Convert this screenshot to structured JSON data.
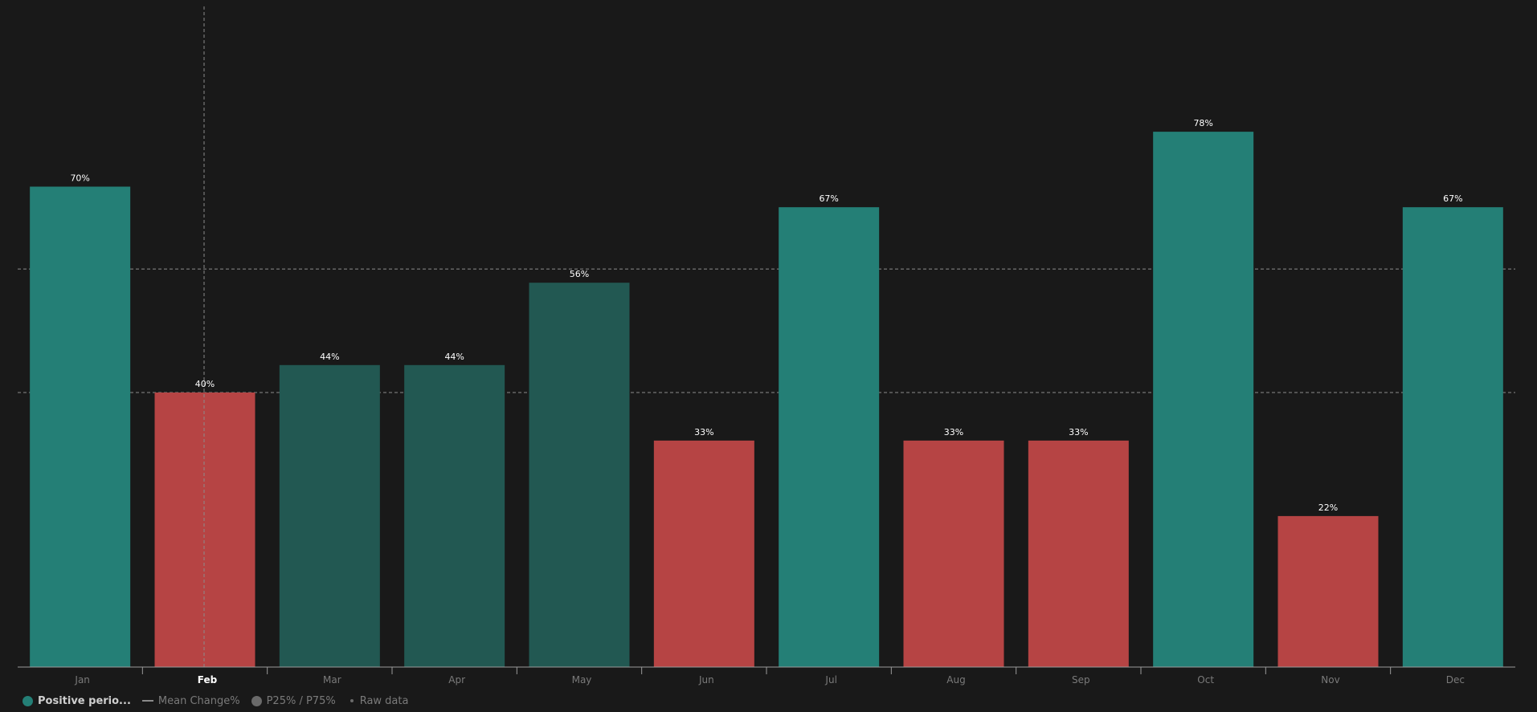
{
  "chart_data": {
    "type": "bar",
    "categories": [
      "Jan",
      "Feb",
      "Mar",
      "Apr",
      "May",
      "Jun",
      "Jul",
      "Aug",
      "Sep",
      "Oct",
      "Nov",
      "Dec"
    ],
    "values": [
      70,
      40,
      44,
      44,
      56,
      33,
      67,
      33,
      33,
      78,
      22,
      67
    ],
    "value_labels": [
      "70%",
      "40%",
      "44%",
      "44%",
      "56%",
      "33%",
      "67%",
      "33%",
      "33%",
      "78%",
      "22%",
      "67%"
    ],
    "ylim": [
      0,
      87
    ],
    "reference_lines": [
      40,
      58
    ],
    "highlighted_category": "Feb",
    "grid": false,
    "colors": {
      "strong_positive": "#247f76",
      "weak_positive": "#225852",
      "negative": "#b64444",
      "background": "#191919"
    },
    "legend_position": "bottom-left"
  },
  "legend": {
    "items": [
      {
        "label": "Positive perio...",
        "marker": "dot",
        "color": "#247f76",
        "active": true
      },
      {
        "label": "Mean Change%",
        "marker": "line",
        "color": "#8a8a8a",
        "active": false
      },
      {
        "label": "P25% / P75%",
        "marker": "dot",
        "color": "#6a6a6a",
        "active": false
      },
      {
        "label": "Raw data",
        "marker": "small-dot",
        "color": "#6a6a6a",
        "active": false
      }
    ]
  }
}
